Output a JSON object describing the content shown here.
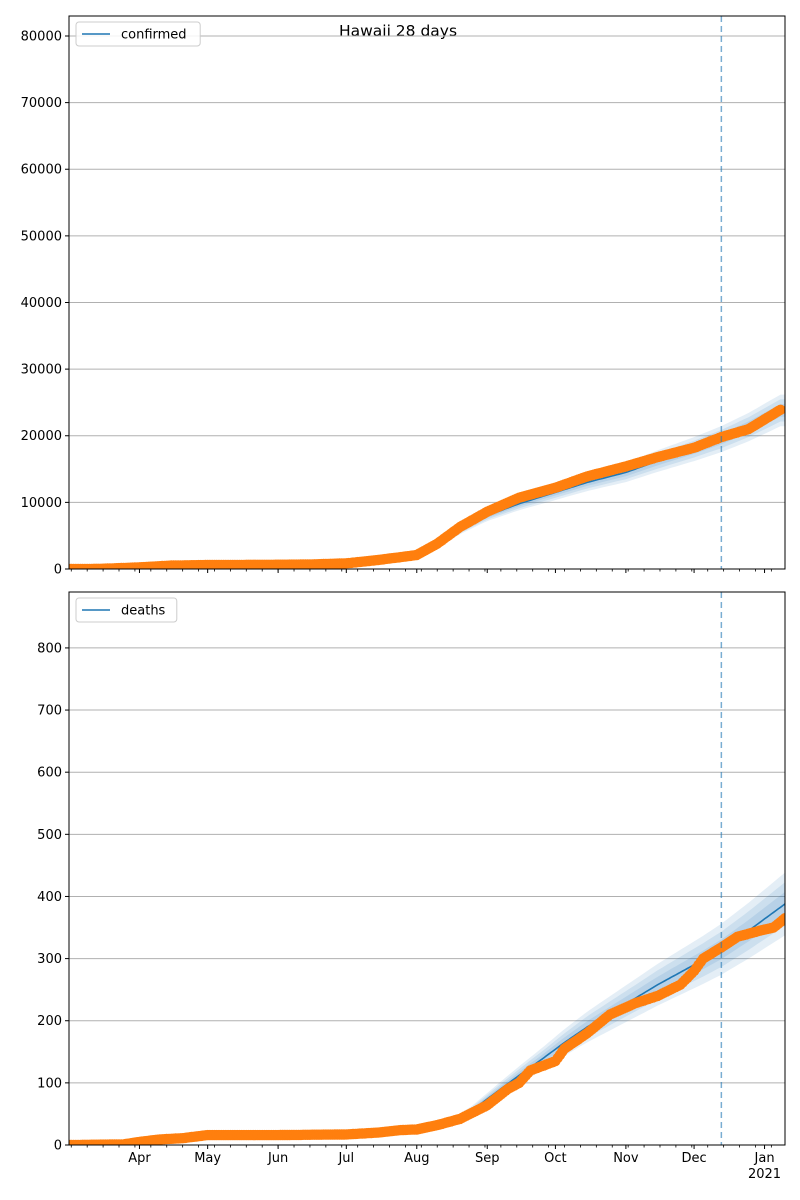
{
  "figure": {
    "title": "Hawaii 28 days",
    "colors": {
      "model": "#1f77b4",
      "observed": "#ff7f0e",
      "band": "#1f77b4",
      "grid": "#b0b0b0",
      "forecast_line": "#1f77b4"
    }
  },
  "chart_data": [
    {
      "type": "line",
      "legend": {
        "label": "confirmed",
        "placement": "top-left"
      },
      "series": [
        {
          "name": "confirmed",
          "kind": "model",
          "x": [
            "2020-03-01",
            "2020-03-15",
            "2020-04-01",
            "2020-04-15",
            "2020-05-01",
            "2020-05-15",
            "2020-06-01",
            "2020-06-15",
            "2020-07-01",
            "2020-07-15",
            "2020-08-01",
            "2020-08-10",
            "2020-08-20",
            "2020-09-01",
            "2020-09-15",
            "2020-10-01",
            "2020-10-15",
            "2020-11-01",
            "2020-11-15",
            "2020-12-01",
            "2020-12-13",
            "2020-12-25",
            "2021-01-08"
          ],
          "y": [
            0,
            20,
            200,
            500,
            600,
            620,
            640,
            660,
            800,
            1300,
            2000,
            3500,
            5800,
            8000,
            9800,
            11500,
            13000,
            14500,
            16200,
            18000,
            19500,
            21300,
            23800
          ]
        },
        {
          "name": "",
          "kind": "observed",
          "x": [
            "2020-03-01",
            "2020-03-15",
            "2020-04-01",
            "2020-04-15",
            "2020-05-01",
            "2020-05-15",
            "2020-06-01",
            "2020-06-15",
            "2020-07-01",
            "2020-07-15",
            "2020-08-01",
            "2020-08-10",
            "2020-08-20",
            "2020-09-01",
            "2020-09-15",
            "2020-10-01",
            "2020-10-15",
            "2020-11-01",
            "2020-11-15",
            "2020-12-01",
            "2020-12-13",
            "2020-12-25",
            "2021-01-08"
          ],
          "y": [
            0,
            30,
            250,
            520,
            600,
            620,
            640,
            680,
            850,
            1350,
            2100,
            3800,
            6300,
            8600,
            10700,
            12200,
            13900,
            15400,
            16800,
            18200,
            19800,
            21000,
            23900
          ]
        }
      ],
      "band_halfwidth_fraction": [
        0.04,
        0.07,
        0.1
      ],
      "forecast_start": "2020-12-13",
      "xlim": [
        "2020-03-01",
        "2021-01-10"
      ],
      "ylim": [
        0,
        83000
      ],
      "yticks": [
        0,
        10000,
        20000,
        30000,
        40000,
        50000,
        60000,
        70000,
        80000
      ],
      "grid": "horizontal",
      "show_x_labels": false
    },
    {
      "type": "line",
      "legend": {
        "label": "deaths",
        "placement": "top-left"
      },
      "series": [
        {
          "name": "deaths",
          "kind": "model",
          "x": [
            "2020-03-01",
            "2020-03-25",
            "2020-04-10",
            "2020-05-01",
            "2020-06-01",
            "2020-07-01",
            "2020-07-20",
            "2020-08-01",
            "2020-08-15",
            "2020-08-25",
            "2020-09-05",
            "2020-09-15",
            "2020-09-25",
            "2020-10-05",
            "2020-10-15",
            "2020-10-25",
            "2020-11-05",
            "2020-11-15",
            "2020-11-25",
            "2020-12-05",
            "2020-12-13",
            "2020-12-25",
            "2021-01-10"
          ],
          "y": [
            0,
            2,
            5,
            12,
            16,
            17,
            19,
            23,
            35,
            55,
            85,
            112,
            138,
            165,
            190,
            212,
            236,
            258,
            278,
            298,
            315,
            345,
            388
          ]
        },
        {
          "name": "",
          "kind": "observed",
          "x": [
            "2020-03-01",
            "2020-03-25",
            "2020-04-01",
            "2020-04-10",
            "2020-04-20",
            "2020-05-01",
            "2020-06-01",
            "2020-07-01",
            "2020-07-15",
            "2020-07-25",
            "2020-08-01",
            "2020-08-10",
            "2020-08-20",
            "2020-09-01",
            "2020-09-10",
            "2020-09-15",
            "2020-09-20",
            "2020-10-01",
            "2020-10-05",
            "2020-10-15",
            "2020-10-25",
            "2020-11-05",
            "2020-11-15",
            "2020-11-25",
            "2020-12-01",
            "2020-12-05",
            "2020-12-13",
            "2020-12-20",
            "2020-12-30",
            "2021-01-05",
            "2021-01-10"
          ],
          "y": [
            0,
            1,
            5,
            9,
            11,
            16,
            16,
            17,
            20,
            24,
            25,
            32,
            42,
            64,
            90,
            100,
            120,
            135,
            155,
            180,
            210,
            228,
            240,
            258,
            280,
            300,
            318,
            335,
            345,
            350,
            365
          ]
        }
      ],
      "band_halfwidth_fraction": [
        0.05,
        0.09,
        0.13
      ],
      "forecast_start": "2020-12-13",
      "xlim": [
        "2020-03-01",
        "2021-01-10"
      ],
      "ylim": [
        0,
        890
      ],
      "yticks": [
        0,
        100,
        200,
        300,
        400,
        500,
        600,
        700,
        800
      ],
      "grid": "horizontal",
      "show_x_labels": true,
      "xtick_labels": [
        {
          "date": "2020-04-01",
          "label": "Apr"
        },
        {
          "date": "2020-05-01",
          "label": "May"
        },
        {
          "date": "2020-06-01",
          "label": "Jun"
        },
        {
          "date": "2020-07-01",
          "label": "Jul"
        },
        {
          "date": "2020-08-01",
          "label": "Aug"
        },
        {
          "date": "2020-09-01",
          "label": "Sep"
        },
        {
          "date": "2020-10-01",
          "label": "Oct"
        },
        {
          "date": "2020-11-01",
          "label": "Nov"
        },
        {
          "date": "2020-12-01",
          "label": "Dec"
        },
        {
          "date": "2021-01-01",
          "label": "Jan",
          "sublabel": "2021"
        }
      ]
    }
  ]
}
